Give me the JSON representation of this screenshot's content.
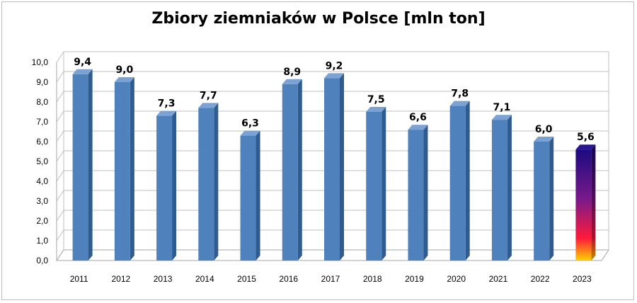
{
  "chart_data": {
    "type": "bar",
    "title": "Zbiory ziemniaków w Polsce [mln ton]",
    "xlabel": "",
    "ylabel": "",
    "categories": [
      "2011",
      "2012",
      "2013",
      "2014",
      "2015",
      "2016",
      "2017",
      "2018",
      "2019",
      "2020",
      "2021",
      "2022",
      "2023"
    ],
    "values": [
      9.4,
      9.0,
      7.3,
      7.7,
      6.3,
      8.9,
      9.2,
      7.5,
      6.6,
      7.8,
      7.1,
      6.0,
      5.6
    ],
    "value_labels": [
      "9,4",
      "9,0",
      "7,3",
      "7,7",
      "6,3",
      "8,9",
      "9,2",
      "7,5",
      "6,6",
      "7,8",
      "7,1",
      "6,0",
      "5,6"
    ],
    "ylim": [
      0,
      10
    ],
    "yticks": [
      "0,0",
      "1,0",
      "2,0",
      "3,0",
      "4,0",
      "5,0",
      "6,0",
      "7,0",
      "8,0",
      "9,0",
      "10,0"
    ],
    "grid": true,
    "legend": "none",
    "bar_color": "#4f81bd",
    "highlight_index": 12,
    "highlight_gradient": [
      "#1a0a7a",
      "#ff2a2a",
      "#ffcc00"
    ]
  }
}
